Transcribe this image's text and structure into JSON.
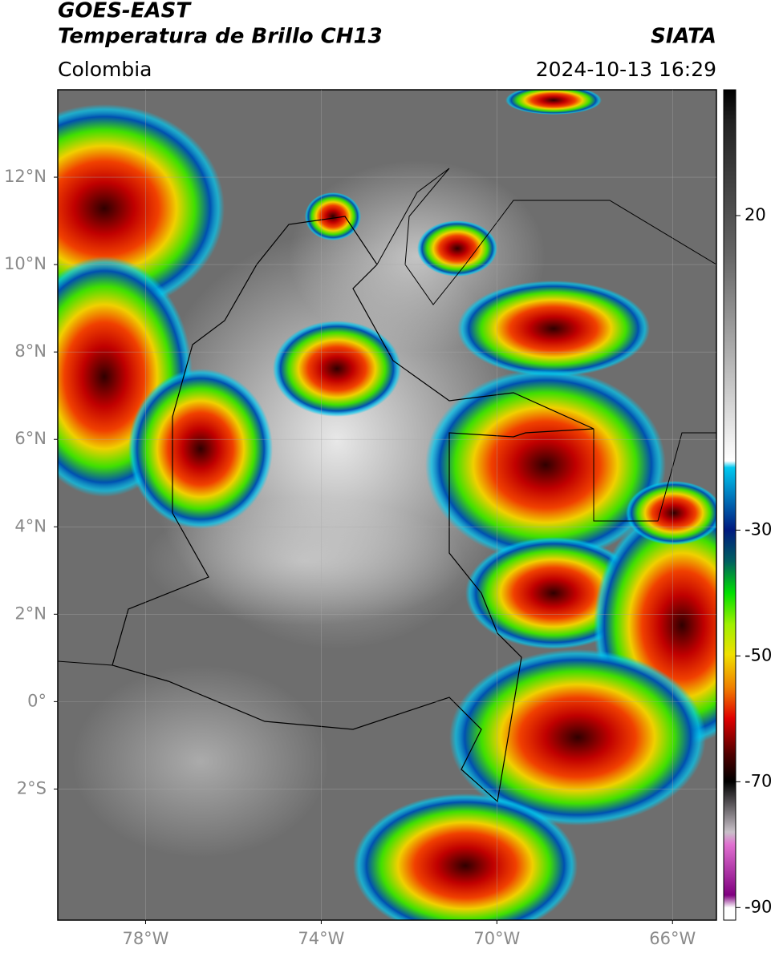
{
  "header": {
    "title": "GOES-EAST",
    "subtitle": "Temperatura de Brillo CH13",
    "source": "SIATA",
    "region": "Colombia",
    "datetime": "2024-10-13 16:29"
  },
  "map": {
    "xlim": [
      -80,
      -65
    ],
    "ylim": [
      -5,
      14
    ],
    "xticks": [
      {
        "value": -78,
        "label": "78°W"
      },
      {
        "value": -74,
        "label": "74°W"
      },
      {
        "value": -70,
        "label": "70°W"
      },
      {
        "value": -66,
        "label": "66°W"
      }
    ],
    "yticks": [
      {
        "value": 12,
        "label": "12°N"
      },
      {
        "value": 10,
        "label": "10°N"
      },
      {
        "value": 8,
        "label": "8°N"
      },
      {
        "value": 6,
        "label": "6°N"
      },
      {
        "value": 4,
        "label": "4°N"
      },
      {
        "value": 2,
        "label": "2°N"
      },
      {
        "value": 0,
        "label": "0°"
      },
      {
        "value": -2,
        "label": "2°S"
      }
    ],
    "grid": true
  },
  "colorbar": {
    "lim": [
      -92,
      40
    ],
    "ticks": [
      20,
      -30,
      -50,
      -70,
      -90
    ]
  }
}
